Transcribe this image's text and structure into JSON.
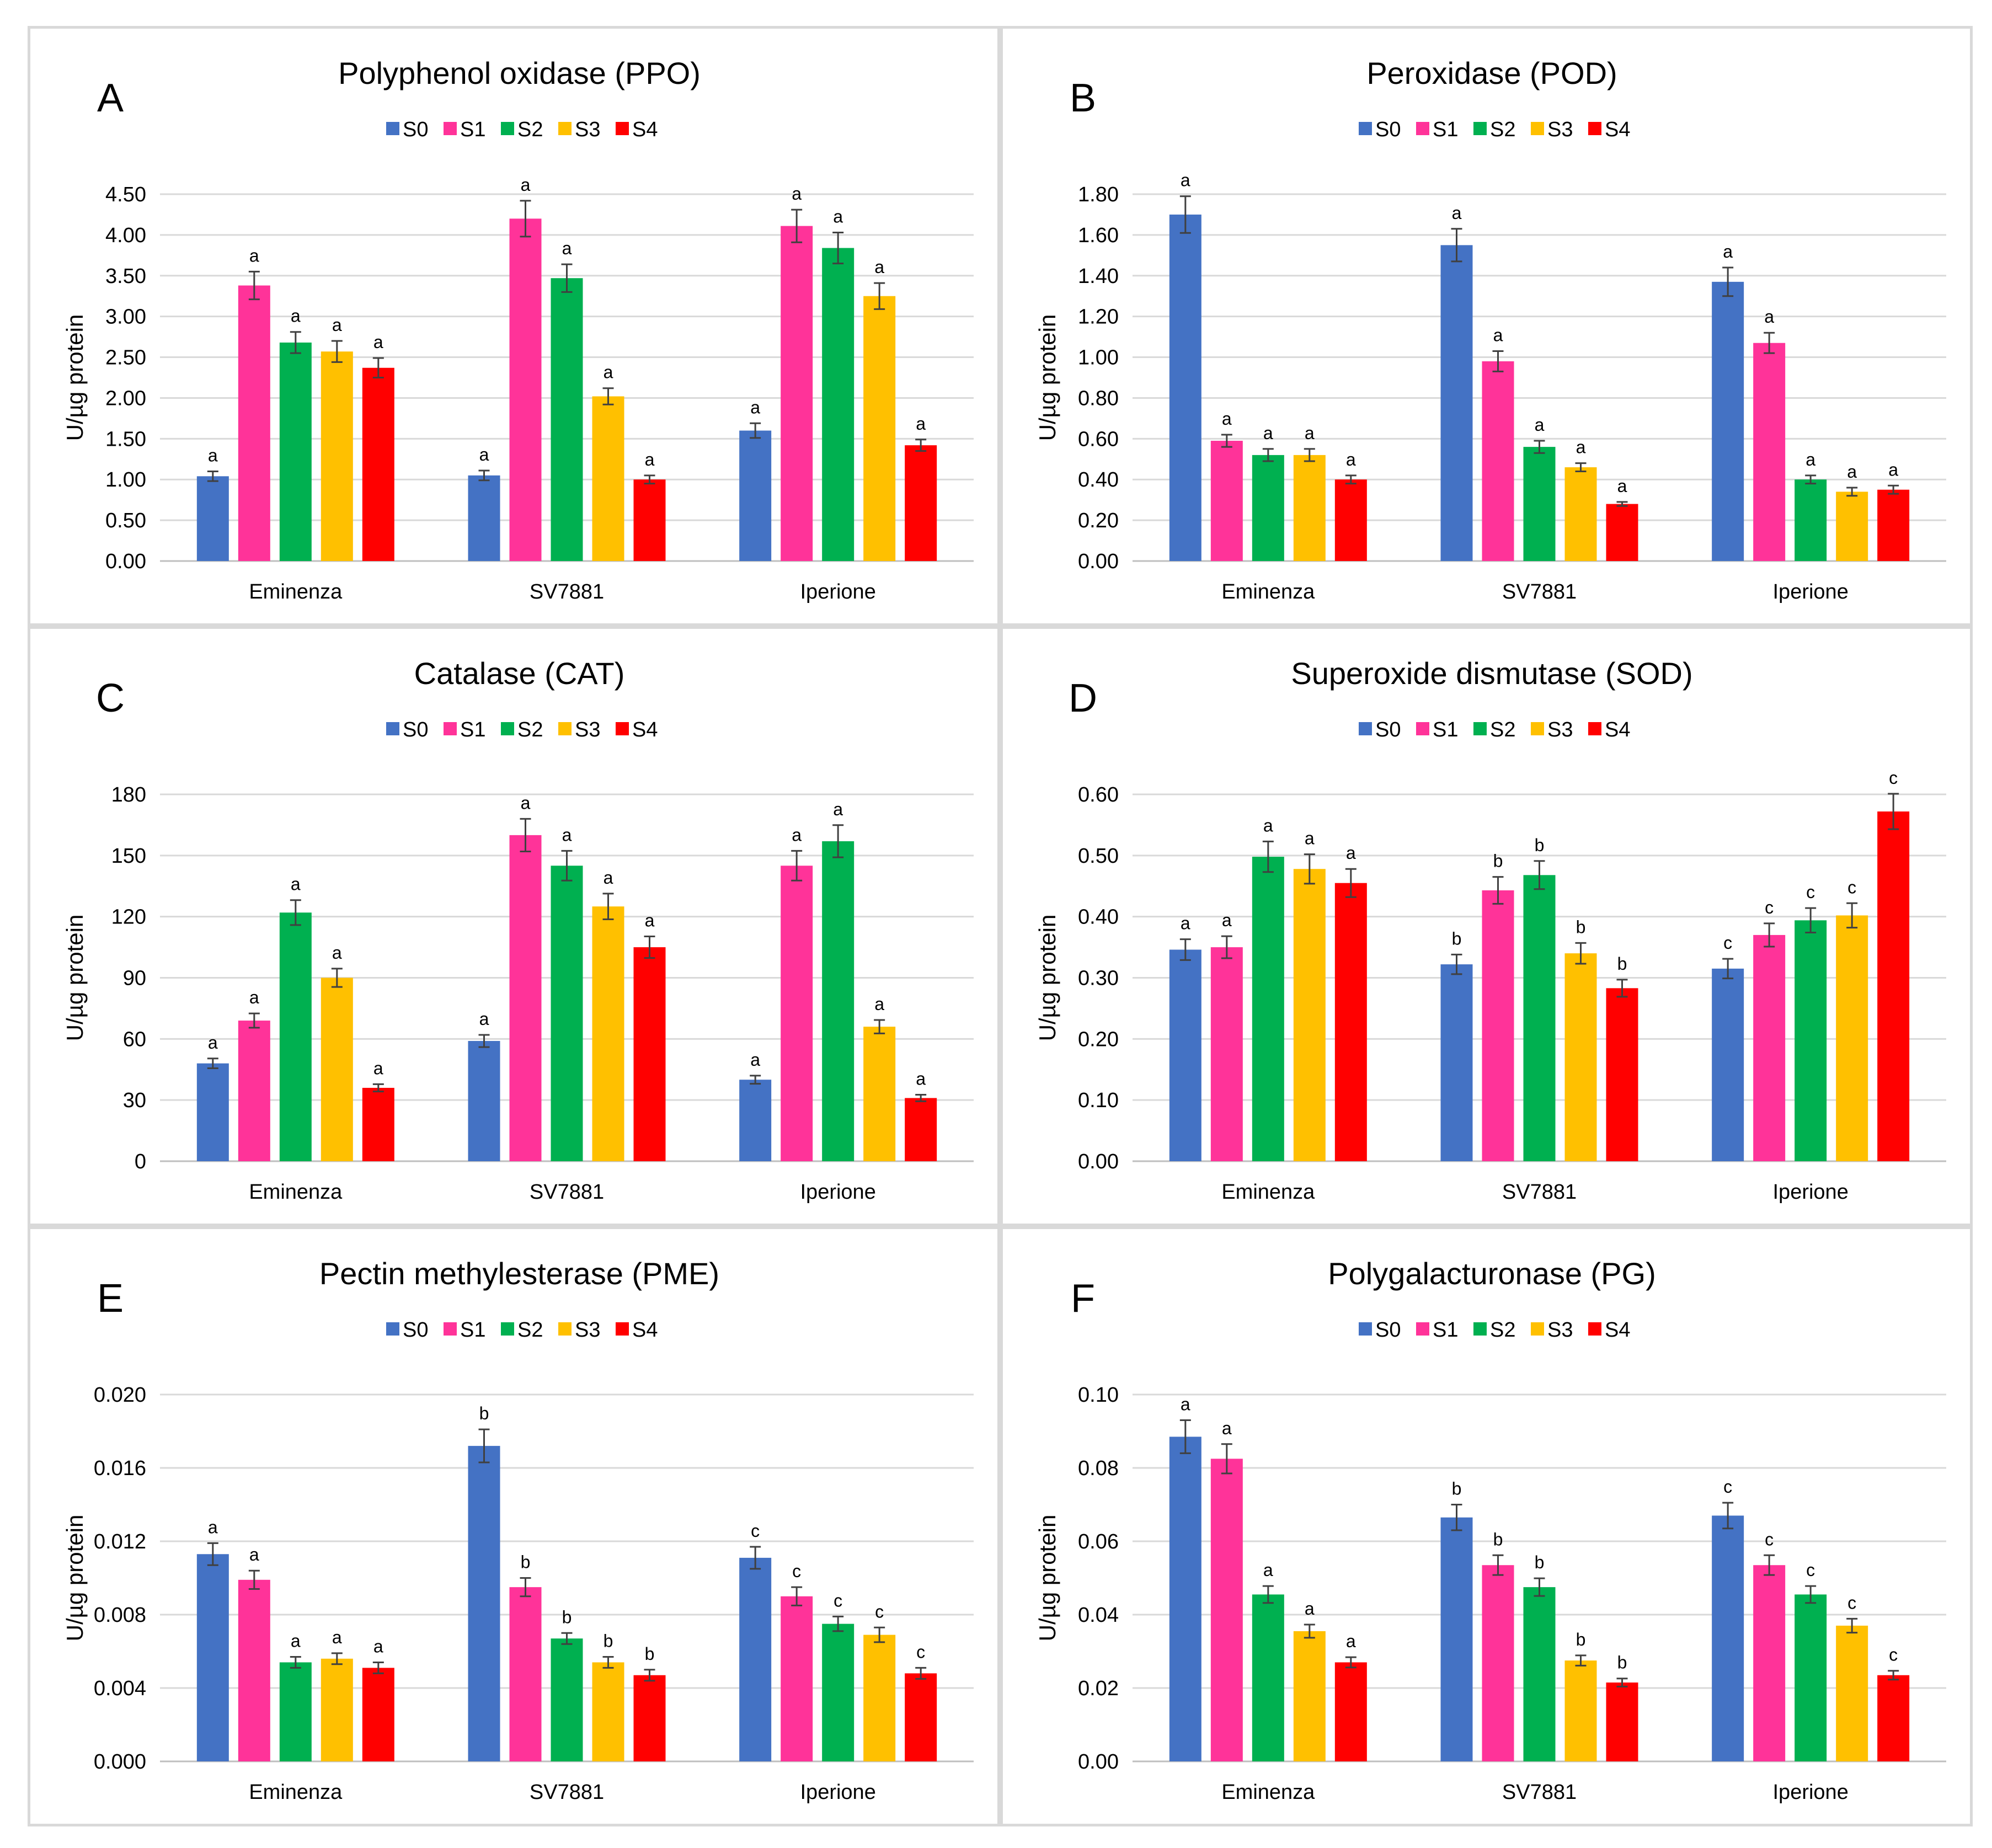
{
  "series_colors": [
    "#4472c4",
    "#ff3399",
    "#00b050",
    "#ffc000",
    "#ff0000"
  ],
  "chart_data": [
    {
      "type": "bar",
      "letter": "A",
      "title": "Polyphenol oxidase (PPO)",
      "ylabel": "U/µg protein",
      "categories": [
        "Eminenza",
        "SV7881",
        "Iperione"
      ],
      "ylim": [
        0,
        4.5
      ],
      "yticks": [
        "0.00",
        "0.50",
        "1.00",
        "1.50",
        "2.00",
        "2.50",
        "3.00",
        "3.50",
        "4.00",
        "4.50"
      ],
      "series": [
        {
          "name": "S0",
          "values": [
            1.04,
            1.05,
            1.6
          ],
          "errors": [
            0.06,
            0.06,
            0.09
          ],
          "labels": [
            "a",
            "a",
            "a"
          ]
        },
        {
          "name": "S1",
          "values": [
            3.38,
            4.2,
            4.11
          ],
          "errors": [
            0.17,
            0.22,
            0.2
          ],
          "labels": [
            "a",
            "a",
            "a"
          ]
        },
        {
          "name": "S2",
          "values": [
            2.68,
            3.47,
            3.84
          ],
          "errors": [
            0.13,
            0.17,
            0.19
          ],
          "labels": [
            "a",
            "a",
            "a"
          ]
        },
        {
          "name": "S3",
          "values": [
            2.57,
            2.02,
            3.25
          ],
          "errors": [
            0.13,
            0.1,
            0.16
          ],
          "labels": [
            "a",
            "a",
            "a"
          ]
        },
        {
          "name": "S4",
          "values": [
            2.37,
            1.0,
            1.42
          ],
          "errors": [
            0.12,
            0.05,
            0.07
          ],
          "labels": [
            "a",
            "a",
            "a"
          ]
        }
      ]
    },
    {
      "type": "bar",
      "letter": "B",
      "title": "Peroxidase (POD)",
      "ylabel": "U/µg protein",
      "categories": [
        "Eminenza",
        "SV7881",
        "Iperione"
      ],
      "ylim": [
        0,
        1.8
      ],
      "yticks": [
        "0.00",
        "0.20",
        "0.40",
        "0.60",
        "0.80",
        "1.00",
        "1.20",
        "1.40",
        "1.60",
        "1.80"
      ],
      "series": [
        {
          "name": "S0",
          "values": [
            1.7,
            1.55,
            1.37
          ],
          "errors": [
            0.09,
            0.08,
            0.07
          ],
          "labels": [
            "a",
            "a",
            "a"
          ]
        },
        {
          "name": "S1",
          "values": [
            0.59,
            0.98,
            1.07
          ],
          "errors": [
            0.03,
            0.05,
            0.05
          ],
          "labels": [
            "a",
            "a",
            "a"
          ]
        },
        {
          "name": "S2",
          "values": [
            0.52,
            0.56,
            0.4
          ],
          "errors": [
            0.03,
            0.03,
            0.02
          ],
          "labels": [
            "a",
            "a",
            "a"
          ]
        },
        {
          "name": "S3",
          "values": [
            0.52,
            0.46,
            0.34
          ],
          "errors": [
            0.03,
            0.02,
            0.02
          ],
          "labels": [
            "a",
            "a",
            "a"
          ]
        },
        {
          "name": "S4",
          "values": [
            0.4,
            0.28,
            0.35
          ],
          "errors": [
            0.02,
            0.01,
            0.02
          ],
          "labels": [
            "a",
            "a",
            "a"
          ]
        }
      ]
    },
    {
      "type": "bar",
      "letter": "C",
      "title": "Catalase (CAT)",
      "ylabel": "U/µg protein",
      "categories": [
        "Eminenza",
        "SV7881",
        "Iperione"
      ],
      "ylim": [
        0,
        180
      ],
      "yticks": [
        "0",
        "30",
        "60",
        "90",
        "120",
        "150",
        "180"
      ],
      "series": [
        {
          "name": "S0",
          "values": [
            48,
            59,
            40
          ],
          "errors": [
            2.4,
            3.0,
            2.0
          ],
          "labels": [
            "a",
            "a",
            "a"
          ]
        },
        {
          "name": "S1",
          "values": [
            69,
            160,
            145
          ],
          "errors": [
            3.5,
            8,
            7.3
          ],
          "labels": [
            "a",
            "a",
            "a"
          ]
        },
        {
          "name": "S2",
          "values": [
            122,
            145,
            157
          ],
          "errors": [
            6.1,
            7.3,
            7.9
          ],
          "labels": [
            "a",
            "a",
            "a"
          ]
        },
        {
          "name": "S3",
          "values": [
            90,
            125,
            66
          ],
          "errors": [
            4.5,
            6.3,
            3.3
          ],
          "labels": [
            "a",
            "a",
            "a"
          ]
        },
        {
          "name": "S4",
          "values": [
            36,
            105,
            31
          ],
          "errors": [
            1.8,
            5.3,
            1.6
          ],
          "labels": [
            "a",
            "a",
            "a"
          ]
        }
      ]
    },
    {
      "type": "bar",
      "letter": "D",
      "title": "Superoxide dismutase (SOD)",
      "ylabel": "U/µg protein",
      "categories": [
        "Eminenza",
        "SV7881",
        "Iperione"
      ],
      "ylim": [
        0,
        0.6
      ],
      "yticks": [
        "0.00",
        "0.10",
        "0.20",
        "0.30",
        "0.40",
        "0.50",
        "0.60"
      ],
      "series": [
        {
          "name": "S0",
          "values": [
            0.346,
            0.322,
            0.315
          ],
          "errors": [
            0.017,
            0.016,
            0.016
          ],
          "labels": [
            "a",
            "b",
            "c"
          ]
        },
        {
          "name": "S1",
          "values": [
            0.35,
            0.443,
            0.37
          ],
          "errors": [
            0.018,
            0.022,
            0.019
          ],
          "labels": [
            "a",
            "b",
            "c"
          ]
        },
        {
          "name": "S2",
          "values": [
            0.498,
            0.468,
            0.394
          ],
          "errors": [
            0.025,
            0.023,
            0.02
          ],
          "labels": [
            "a",
            "b",
            "c"
          ]
        },
        {
          "name": "S3",
          "values": [
            0.478,
            0.34,
            0.402
          ],
          "errors": [
            0.024,
            0.017,
            0.02
          ],
          "labels": [
            "a",
            "b",
            "c"
          ]
        },
        {
          "name": "S4",
          "values": [
            0.455,
            0.283,
            0.572
          ],
          "errors": [
            0.023,
            0.014,
            0.029
          ],
          "labels": [
            "a",
            "b",
            "c"
          ]
        }
      ]
    },
    {
      "type": "bar",
      "letter": "E",
      "title": "Pectin methylesterase (PME)",
      "ylabel": "U/µg protein",
      "categories": [
        "Eminenza",
        "SV7881",
        "Iperione"
      ],
      "ylim": [
        0,
        0.02
      ],
      "yticks": [
        "0.000",
        "0.004",
        "0.008",
        "0.012",
        "0.016",
        "0.020"
      ],
      "series": [
        {
          "name": "S0",
          "values": [
            0.0113,
            0.0172,
            0.0111
          ],
          "errors": [
            0.0006,
            0.0009,
            0.0006
          ],
          "labels": [
            "a",
            "b",
            "c"
          ]
        },
        {
          "name": "S1",
          "values": [
            0.0099,
            0.0095,
            0.009
          ],
          "errors": [
            0.0005,
            0.0005,
            0.0005
          ],
          "labels": [
            "a",
            "b",
            "c"
          ]
        },
        {
          "name": "S2",
          "values": [
            0.0054,
            0.0067,
            0.0075
          ],
          "errors": [
            0.0003,
            0.0003,
            0.0004
          ],
          "labels": [
            "a",
            "b",
            "c"
          ]
        },
        {
          "name": "S3",
          "values": [
            0.0056,
            0.0054,
            0.0069
          ],
          "errors": [
            0.0003,
            0.0003,
            0.0004
          ],
          "labels": [
            "a",
            "b",
            "c"
          ]
        },
        {
          "name": "S4",
          "values": [
            0.0051,
            0.0047,
            0.0048
          ],
          "errors": [
            0.0003,
            0.0003,
            0.0003
          ],
          "labels": [
            "a",
            "b",
            "c"
          ]
        }
      ]
    },
    {
      "type": "bar",
      "letter": "F",
      "title": "Polygalacturonase (PG)",
      "ylabel": "U/µg protein",
      "categories": [
        "Eminenza",
        "SV7881",
        "Iperione"
      ],
      "ylim": [
        0,
        0.1
      ],
      "yticks": [
        "0.00",
        "0.02",
        "0.04",
        "0.06",
        "0.08",
        "0.10"
      ],
      "series": [
        {
          "name": "S0",
          "values": [
            0.0885,
            0.0665,
            0.067
          ],
          "errors": [
            0.0045,
            0.0035,
            0.0035
          ],
          "labels": [
            "a",
            "b",
            "c"
          ]
        },
        {
          "name": "S1",
          "values": [
            0.0825,
            0.0535,
            0.0535
          ],
          "errors": [
            0.004,
            0.0027,
            0.0027
          ],
          "labels": [
            "a",
            "b",
            "c"
          ]
        },
        {
          "name": "S2",
          "values": [
            0.0455,
            0.0475,
            0.0455
          ],
          "errors": [
            0.0023,
            0.0024,
            0.0023
          ],
          "labels": [
            "a",
            "b",
            "c"
          ]
        },
        {
          "name": "S3",
          "values": [
            0.0355,
            0.0275,
            0.037
          ],
          "errors": [
            0.0018,
            0.0014,
            0.0019
          ],
          "labels": [
            "a",
            "b",
            "c"
          ]
        },
        {
          "name": "S4",
          "values": [
            0.027,
            0.0215,
            0.0235
          ],
          "errors": [
            0.0014,
            0.0011,
            0.0012
          ],
          "labels": [
            "a",
            "b",
            "c"
          ]
        }
      ]
    }
  ]
}
